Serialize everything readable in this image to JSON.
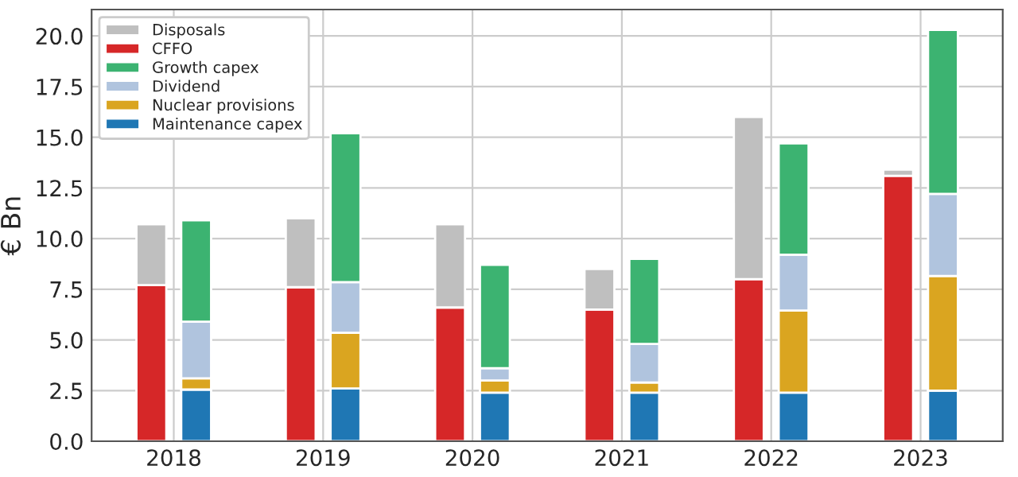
{
  "chart_data": {
    "type": "bar",
    "ylabel": "€ Bn",
    "xlim": [
      2017.45,
      2023.55
    ],
    "xticks": [
      2018,
      2019,
      2020,
      2021,
      2022,
      2023
    ],
    "ylim": [
      0,
      21.3
    ],
    "yticks": [
      {
        "value": 0,
        "label": "0.0"
      },
      {
        "value": 2.5,
        "label": "2.5"
      },
      {
        "value": 5,
        "label": "5.0"
      },
      {
        "value": 7.5,
        "label": "7.5"
      },
      {
        "value": 10,
        "label": "10.0"
      },
      {
        "value": 12.5,
        "label": "12.5"
      },
      {
        "value": 15,
        "label": "15.0"
      },
      {
        "value": 17.5,
        "label": "17.5"
      },
      {
        "value": 20,
        "label": "20.0"
      }
    ],
    "grid": true,
    "legend": "top left",
    "series": [
      {
        "name": "CFFO",
        "color": "#d62728",
        "x": [
          2017.85,
          2018.85,
          2019.85,
          2020.85,
          2021.85,
          2022.85
        ],
        "base": [
          0,
          0,
          0,
          0,
          0,
          0
        ],
        "values": [
          7.7,
          7.6,
          6.6,
          6.5,
          8.0,
          13.1
        ]
      },
      {
        "name": "Disposals",
        "color": "#bfbfbf",
        "x": [
          2017.85,
          2018.85,
          2019.85,
          2020.85,
          2021.85,
          2022.85
        ],
        "base": [
          7.7,
          7.6,
          6.6,
          6.5,
          8.0,
          13.1
        ],
        "values": [
          3.0,
          3.4,
          4.1,
          2.0,
          8.0,
          0.3
        ]
      },
      {
        "name": "Maintenance capex",
        "color": "#1f77b4",
        "x": [
          2018.15,
          2019.15,
          2020.15,
          2021.15,
          2022.15,
          2023.15
        ],
        "base": [
          0,
          0,
          0,
          0,
          0,
          0
        ],
        "values": [
          2.55,
          2.6,
          2.4,
          2.4,
          2.4,
          2.5
        ]
      },
      {
        "name": "Nuclear provisions",
        "color": "#daa520",
        "x": [
          2018.15,
          2019.15,
          2020.15,
          2021.15,
          2022.15,
          2023.15
        ],
        "base": [
          2.55,
          2.6,
          2.4,
          2.4,
          2.4,
          2.5
        ],
        "values": [
          0.55,
          2.75,
          0.6,
          0.5,
          4.05,
          5.65
        ]
      },
      {
        "name": "Dividend",
        "color": "#b0c4de",
        "x": [
          2018.15,
          2019.15,
          2020.15,
          2021.15,
          2022.15,
          2023.15
        ],
        "base": [
          3.1,
          5.35,
          3.0,
          2.9,
          6.45,
          8.15
        ],
        "values": [
          2.8,
          2.5,
          0.6,
          1.9,
          2.75,
          4.05
        ]
      },
      {
        "name": "Growth capex",
        "color": "#3cb371",
        "x": [
          2018.15,
          2019.15,
          2020.15,
          2021.15,
          2022.15,
          2023.15
        ],
        "base": [
          5.9,
          7.85,
          3.6,
          4.8,
          9.2,
          12.2
        ],
        "values": [
          5.0,
          7.35,
          5.1,
          4.2,
          5.5,
          8.1
        ]
      }
    ]
  }
}
